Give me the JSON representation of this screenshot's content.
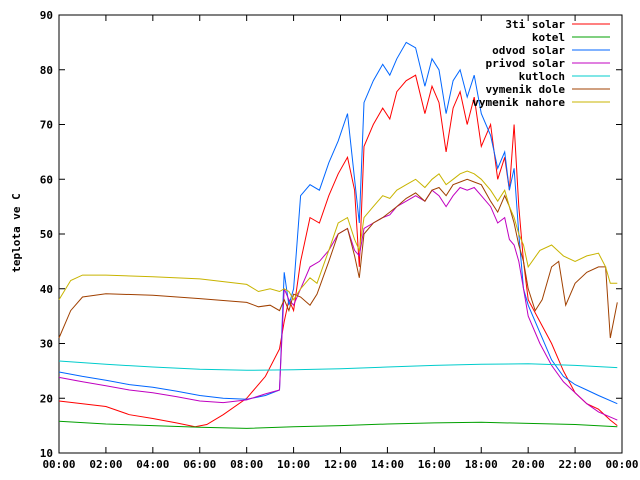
{
  "chart_data": {
    "type": "line",
    "title": "",
    "xlabel": "",
    "ylabel": "teplota ve C",
    "xlim": [
      0,
      24
    ],
    "ylim": [
      10,
      90
    ],
    "x_tick_labels": [
      "00:00",
      "02:00",
      "04:00",
      "06:00",
      "08:00",
      "10:00",
      "12:00",
      "14:00",
      "16:00",
      "18:00",
      "20:00",
      "22:00",
      "00:00"
    ],
    "y_tick_labels": [
      "10",
      "20",
      "30",
      "40",
      "50",
      "60",
      "70",
      "80",
      "90"
    ],
    "legend_position": "top-right",
    "grid": false,
    "series": [
      {
        "name": "3ti solar",
        "color": "#ff0000",
        "points": [
          [
            0,
            19.5
          ],
          [
            1,
            19
          ],
          [
            2,
            18.5
          ],
          [
            3,
            17
          ],
          [
            4,
            16.3
          ],
          [
            5,
            15.5
          ],
          [
            5.8,
            14.8
          ],
          [
            6.3,
            15.2
          ],
          [
            7,
            17
          ],
          [
            8,
            20
          ],
          [
            8.8,
            24
          ],
          [
            9.4,
            29
          ],
          [
            9.6,
            34
          ],
          [
            9.8,
            38
          ],
          [
            10,
            36
          ],
          [
            10.3,
            45
          ],
          [
            10.7,
            53
          ],
          [
            11.1,
            52
          ],
          [
            11.5,
            57
          ],
          [
            11.9,
            61
          ],
          [
            12.3,
            64
          ],
          [
            12.6,
            58
          ],
          [
            12.8,
            44
          ],
          [
            13,
            66
          ],
          [
            13.4,
            70
          ],
          [
            13.8,
            73
          ],
          [
            14.1,
            71
          ],
          [
            14.4,
            76
          ],
          [
            14.8,
            78
          ],
          [
            15.2,
            79
          ],
          [
            15.6,
            72
          ],
          [
            15.9,
            77
          ],
          [
            16.2,
            74
          ],
          [
            16.5,
            65
          ],
          [
            16.8,
            73
          ],
          [
            17.1,
            76
          ],
          [
            17.4,
            70
          ],
          [
            17.7,
            75
          ],
          [
            18,
            66
          ],
          [
            18.4,
            70
          ],
          [
            18.7,
            60
          ],
          [
            19,
            64
          ],
          [
            19.2,
            58
          ],
          [
            19.4,
            70
          ],
          [
            19.6,
            55
          ],
          [
            19.8,
            45
          ],
          [
            20,
            38
          ],
          [
            20.5,
            34
          ],
          [
            21,
            30
          ],
          [
            21.5,
            25
          ],
          [
            22,
            21
          ],
          [
            22.5,
            19
          ],
          [
            23,
            18
          ],
          [
            23.5,
            16
          ],
          [
            23.8,
            15
          ]
        ]
      },
      {
        "name": "kotel",
        "color": "#00a000",
        "points": [
          [
            0,
            15.8
          ],
          [
            2,
            15.3
          ],
          [
            4,
            15
          ],
          [
            6,
            14.7
          ],
          [
            8,
            14.5
          ],
          [
            10,
            14.8
          ],
          [
            12,
            15
          ],
          [
            14,
            15.3
          ],
          [
            16,
            15.5
          ],
          [
            18,
            15.6
          ],
          [
            20,
            15.4
          ],
          [
            22,
            15.2
          ],
          [
            23.8,
            14.8
          ]
        ]
      },
      {
        "name": "odvod solar",
        "color": "#0066ff",
        "points": [
          [
            0,
            24.8
          ],
          [
            1,
            24
          ],
          [
            2,
            23.3
          ],
          [
            3,
            22.5
          ],
          [
            4,
            22
          ],
          [
            5,
            21.3
          ],
          [
            6,
            20.5
          ],
          [
            7,
            20
          ],
          [
            8,
            19.8
          ],
          [
            8.8,
            20.5
          ],
          [
            9.4,
            21.5
          ],
          [
            9.6,
            43
          ],
          [
            9.8,
            37
          ],
          [
            10,
            40
          ],
          [
            10.3,
            57
          ],
          [
            10.7,
            59
          ],
          [
            11.1,
            58
          ],
          [
            11.5,
            63
          ],
          [
            11.9,
            67
          ],
          [
            12.3,
            72
          ],
          [
            12.6,
            60
          ],
          [
            12.8,
            52
          ],
          [
            13,
            74
          ],
          [
            13.4,
            78
          ],
          [
            13.8,
            81
          ],
          [
            14.1,
            79
          ],
          [
            14.4,
            82
          ],
          [
            14.8,
            85
          ],
          [
            15.2,
            84
          ],
          [
            15.6,
            77
          ],
          [
            15.9,
            82
          ],
          [
            16.2,
            80
          ],
          [
            16.5,
            72
          ],
          [
            16.8,
            78
          ],
          [
            17.1,
            80
          ],
          [
            17.4,
            75
          ],
          [
            17.7,
            79
          ],
          [
            18,
            72
          ],
          [
            18.4,
            68
          ],
          [
            18.7,
            62
          ],
          [
            19,
            65
          ],
          [
            19.2,
            58
          ],
          [
            19.4,
            62
          ],
          [
            19.6,
            50
          ],
          [
            19.8,
            40
          ],
          [
            20,
            37
          ],
          [
            20.5,
            32
          ],
          [
            21,
            27
          ],
          [
            21.5,
            24
          ],
          [
            22,
            22.5
          ],
          [
            22.5,
            21.5
          ],
          [
            23,
            20.5
          ],
          [
            23.8,
            19
          ]
        ]
      },
      {
        "name": "privod solar",
        "color": "#c000c0",
        "points": [
          [
            0,
            23.8
          ],
          [
            1,
            23
          ],
          [
            2,
            22.3
          ],
          [
            3,
            21.5
          ],
          [
            4,
            21
          ],
          [
            5,
            20.3
          ],
          [
            6,
            19.5
          ],
          [
            7,
            19.2
          ],
          [
            8,
            19.7
          ],
          [
            8.8,
            20.8
          ],
          [
            9.4,
            21.5
          ],
          [
            9.6,
            40
          ],
          [
            9.8,
            38
          ],
          [
            10,
            37
          ],
          [
            10.3,
            40
          ],
          [
            10.7,
            44
          ],
          [
            11.1,
            45
          ],
          [
            11.5,
            47
          ],
          [
            11.9,
            50
          ],
          [
            12.3,
            51
          ],
          [
            12.6,
            47
          ],
          [
            12.8,
            46
          ],
          [
            13,
            51
          ],
          [
            13.4,
            52
          ],
          [
            13.8,
            53
          ],
          [
            14.1,
            53.5
          ],
          [
            14.4,
            55
          ],
          [
            14.8,
            56
          ],
          [
            15.2,
            57
          ],
          [
            15.6,
            56
          ],
          [
            15.9,
            58
          ],
          [
            16.2,
            57
          ],
          [
            16.5,
            55
          ],
          [
            16.8,
            57
          ],
          [
            17.1,
            58.5
          ],
          [
            17.4,
            58
          ],
          [
            17.7,
            58.5
          ],
          [
            18,
            57
          ],
          [
            18.4,
            55
          ],
          [
            18.7,
            52
          ],
          [
            19,
            53
          ],
          [
            19.2,
            49
          ],
          [
            19.4,
            48
          ],
          [
            19.6,
            45
          ],
          [
            19.8,
            40
          ],
          [
            20,
            35
          ],
          [
            20.5,
            30
          ],
          [
            21,
            26
          ],
          [
            21.5,
            23
          ],
          [
            22,
            21
          ],
          [
            22.5,
            19
          ],
          [
            23,
            17.5
          ],
          [
            23.8,
            16
          ]
        ]
      },
      {
        "name": "kutloch",
        "color": "#00cccc",
        "points": [
          [
            0,
            26.8
          ],
          [
            2,
            26.2
          ],
          [
            4,
            25.7
          ],
          [
            6,
            25.3
          ],
          [
            8,
            25.1
          ],
          [
            10,
            25.2
          ],
          [
            12,
            25.4
          ],
          [
            14,
            25.7
          ],
          [
            16,
            26
          ],
          [
            18,
            26.2
          ],
          [
            20,
            26.3
          ],
          [
            22,
            26
          ],
          [
            23.8,
            25.6
          ]
        ]
      },
      {
        "name": "vymenik dole",
        "color": "#a04000",
        "points": [
          [
            0,
            31
          ],
          [
            0.5,
            36
          ],
          [
            1,
            38.5
          ],
          [
            2,
            39.1
          ],
          [
            4,
            38.8
          ],
          [
            6,
            38.2
          ],
          [
            8,
            37.5
          ],
          [
            8.5,
            36.7
          ],
          [
            9,
            37
          ],
          [
            9.4,
            36
          ],
          [
            9.6,
            38
          ],
          [
            9.8,
            36
          ],
          [
            10,
            39
          ],
          [
            10.3,
            38.5
          ],
          [
            10.7,
            37
          ],
          [
            11,
            39
          ],
          [
            11.5,
            45
          ],
          [
            11.9,
            50
          ],
          [
            12.3,
            51
          ],
          [
            12.6,
            46
          ],
          [
            12.8,
            42
          ],
          [
            13,
            50
          ],
          [
            13.4,
            52
          ],
          [
            13.8,
            53
          ],
          [
            14.1,
            54
          ],
          [
            14.4,
            55
          ],
          [
            14.8,
            56.5
          ],
          [
            15.2,
            57.5
          ],
          [
            15.6,
            56
          ],
          [
            15.9,
            58
          ],
          [
            16.2,
            58.5
          ],
          [
            16.5,
            57
          ],
          [
            16.8,
            59
          ],
          [
            17.1,
            59.5
          ],
          [
            17.4,
            60
          ],
          [
            17.7,
            59.5
          ],
          [
            18,
            59
          ],
          [
            18.4,
            56
          ],
          [
            18.7,
            54
          ],
          [
            19,
            57
          ],
          [
            19.2,
            55
          ],
          [
            19.4,
            52
          ],
          [
            19.6,
            48
          ],
          [
            19.8,
            45
          ],
          [
            20,
            40
          ],
          [
            20.3,
            36
          ],
          [
            20.6,
            38
          ],
          [
            21,
            44
          ],
          [
            21.3,
            45
          ],
          [
            21.6,
            37
          ],
          [
            22,
            41
          ],
          [
            22.5,
            43
          ],
          [
            23,
            44
          ],
          [
            23.3,
            44
          ],
          [
            23.5,
            31
          ],
          [
            23.8,
            37.5
          ]
        ]
      },
      {
        "name": "vymenik nahore",
        "color": "#c8b400",
        "points": [
          [
            0,
            38
          ],
          [
            0.5,
            41.5
          ],
          [
            1,
            42.5
          ],
          [
            2,
            42.5
          ],
          [
            4,
            42.2
          ],
          [
            6,
            41.8
          ],
          [
            8,
            40.8
          ],
          [
            8.5,
            39.5
          ],
          [
            9,
            40
          ],
          [
            9.4,
            39.5
          ],
          [
            9.6,
            40
          ],
          [
            9.8,
            39.5
          ],
          [
            10,
            38
          ],
          [
            10.3,
            40
          ],
          [
            10.7,
            42
          ],
          [
            11,
            41
          ],
          [
            11.5,
            47
          ],
          [
            11.9,
            52
          ],
          [
            12.3,
            53
          ],
          [
            12.6,
            49
          ],
          [
            12.8,
            47
          ],
          [
            13,
            53
          ],
          [
            13.4,
            55
          ],
          [
            13.8,
            57
          ],
          [
            14.1,
            56.5
          ],
          [
            14.4,
            58
          ],
          [
            14.8,
            59
          ],
          [
            15.2,
            60
          ],
          [
            15.6,
            58.5
          ],
          [
            15.9,
            60
          ],
          [
            16.2,
            61
          ],
          [
            16.5,
            59
          ],
          [
            16.8,
            60
          ],
          [
            17.1,
            61
          ],
          [
            17.4,
            61.5
          ],
          [
            17.7,
            61
          ],
          [
            18,
            60
          ],
          [
            18.4,
            58
          ],
          [
            18.7,
            56
          ],
          [
            19,
            58
          ],
          [
            19.2,
            55
          ],
          [
            19.4,
            53
          ],
          [
            19.6,
            50
          ],
          [
            19.8,
            48
          ],
          [
            20,
            44
          ],
          [
            20.5,
            47
          ],
          [
            21,
            48
          ],
          [
            21.5,
            46
          ],
          [
            22,
            45
          ],
          [
            22.5,
            46
          ],
          [
            23,
            46.5
          ],
          [
            23.3,
            44
          ],
          [
            23.5,
            41
          ],
          [
            23.8,
            41
          ]
        ]
      }
    ]
  }
}
